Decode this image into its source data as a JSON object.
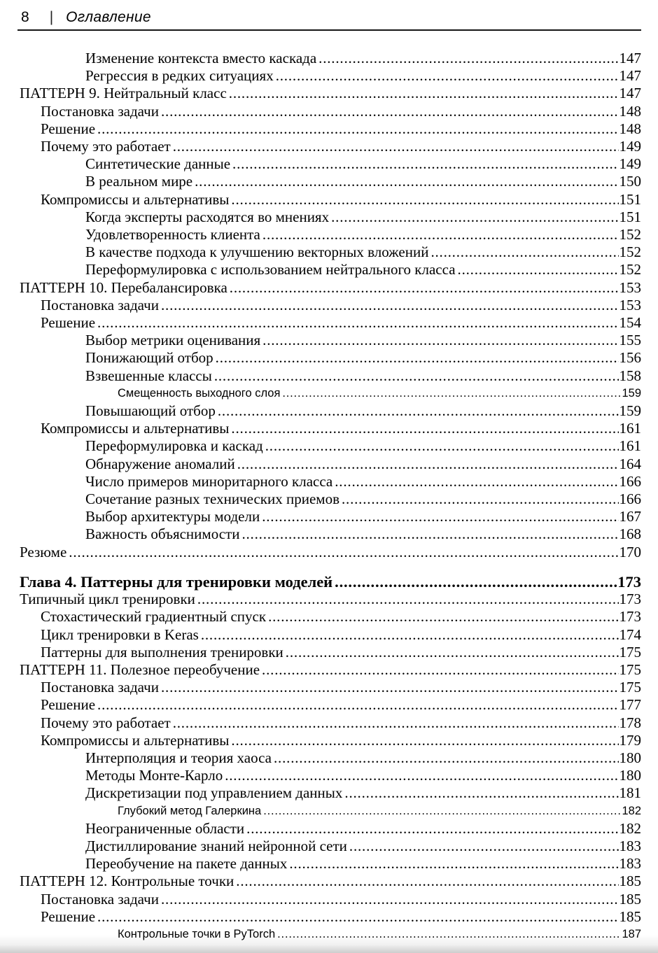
{
  "colors": {
    "background": "#ffffff",
    "text": "#000000",
    "rule": "#151515"
  },
  "header": {
    "page_number": "8",
    "separator": "|",
    "title": "Оглавление"
  },
  "toc": {
    "entries": [
      {
        "label": "Изменение контекста вместо каскада",
        "page": "147",
        "level": 2,
        "variant": "normal"
      },
      {
        "label": "Регрессия в редких ситуациях",
        "page": "147",
        "level": 2,
        "variant": "normal"
      },
      {
        "label": "ПАТТЕРН 9. Нейтральный класс",
        "page": "147",
        "level": 0,
        "variant": "normal"
      },
      {
        "label": "Постановка задачи",
        "page": "148",
        "level": 1,
        "variant": "normal"
      },
      {
        "label": "Решение",
        "page": "148",
        "level": 1,
        "variant": "normal"
      },
      {
        "label": "Почему это работает",
        "page": "149",
        "level": 1,
        "variant": "normal"
      },
      {
        "label": "Синтетические данные",
        "page": "149",
        "level": 2,
        "variant": "normal"
      },
      {
        "label": "В реальном мире",
        "page": "150",
        "level": 2,
        "variant": "normal"
      },
      {
        "label": "Компромиссы и альтернативы",
        "page": "151",
        "level": 1,
        "variant": "normal"
      },
      {
        "label": "Когда эксперты расходятся во мнениях",
        "page": "151",
        "level": 2,
        "variant": "normal"
      },
      {
        "label": "Удовлетворенность клиента",
        "page": "152",
        "level": 2,
        "variant": "normal"
      },
      {
        "label": "В качестве подхода к улучшению векторных вложений",
        "page": "152",
        "level": 2,
        "variant": "normal"
      },
      {
        "label": "Переформулировка с использованием нейтрального класса",
        "page": "152",
        "level": 2,
        "variant": "normal"
      },
      {
        "label": "ПАТТЕРН 10. Перебалансировка",
        "page": "153",
        "level": 0,
        "variant": "normal"
      },
      {
        "label": "Постановка задачи",
        "page": "153",
        "level": 1,
        "variant": "normal"
      },
      {
        "label": "Решение",
        "page": "154",
        "level": 1,
        "variant": "normal"
      },
      {
        "label": "Выбор метрики оценивания",
        "page": "155",
        "level": 2,
        "variant": "normal"
      },
      {
        "label": "Понижающий отбор",
        "page": "156",
        "level": 2,
        "variant": "normal"
      },
      {
        "label": "Взвешенные классы",
        "page": "158",
        "level": 2,
        "variant": "normal"
      },
      {
        "label": "Смещенность выходного слоя",
        "page": "159",
        "level": 3,
        "variant": "small"
      },
      {
        "label": "Повышающий отбор",
        "page": "159",
        "level": 2,
        "variant": "normal"
      },
      {
        "label": "Компромиссы и альтернативы",
        "page": "161",
        "level": 1,
        "variant": "normal"
      },
      {
        "label": "Переформулировка и каскад",
        "page": "161",
        "level": 2,
        "variant": "normal"
      },
      {
        "label": "Обнаружение аномалий",
        "page": "164",
        "level": 2,
        "variant": "normal"
      },
      {
        "label": "Число примеров миноритарного класса",
        "page": "166",
        "level": 2,
        "variant": "normal"
      },
      {
        "label": "Сочетание разных технических приемов",
        "page": "166",
        "level": 2,
        "variant": "normal"
      },
      {
        "label": "Выбор архитектуры модели",
        "page": "167",
        "level": 2,
        "variant": "normal"
      },
      {
        "label": "Важность объяснимости",
        "page": "168",
        "level": 2,
        "variant": "normal"
      },
      {
        "label": "Резюме",
        "page": "170",
        "level": 0,
        "variant": "normal"
      },
      {
        "label": "Глава 4. Паттерны для тренировки моделей",
        "page": "173",
        "level": 0,
        "variant": "chapter"
      },
      {
        "label": "Типичный цикл тренировки",
        "page": "173",
        "level": 0,
        "variant": "normal"
      },
      {
        "label": "Стохастический градиентный спуск",
        "page": "173",
        "level": 1,
        "variant": "normal"
      },
      {
        "label": "Цикл тренировки в Keras",
        "page": "174",
        "level": 1,
        "variant": "normal"
      },
      {
        "label": "Паттерны для выполнения тренировки",
        "page": "175",
        "level": 1,
        "variant": "normal"
      },
      {
        "label": "ПАТТЕРН 11. Полезное переобучение",
        "page": "175",
        "level": 0,
        "variant": "normal"
      },
      {
        "label": "Постановка задачи",
        "page": "175",
        "level": 1,
        "variant": "normal"
      },
      {
        "label": "Решение",
        "page": "177",
        "level": 1,
        "variant": "normal"
      },
      {
        "label": "Почему это работает",
        "page": "178",
        "level": 1,
        "variant": "normal"
      },
      {
        "label": "Компромиссы и альтернативы",
        "page": "179",
        "level": 1,
        "variant": "normal"
      },
      {
        "label": "Интерполяция и теория хаоса",
        "page": "180",
        "level": 2,
        "variant": "normal"
      },
      {
        "label": "Методы Монте-Карло",
        "page": "180",
        "level": 2,
        "variant": "normal"
      },
      {
        "label": "Дискретизации под управлением данных",
        "page": "181",
        "level": 2,
        "variant": "normal"
      },
      {
        "label": "Глубокий метод Галеркина",
        "page": "182",
        "level": 3,
        "variant": "small"
      },
      {
        "label": "Неограниченные области",
        "page": "182",
        "level": 2,
        "variant": "normal"
      },
      {
        "label": "Дистиллирование знаний нейронной сети",
        "page": "183",
        "level": 2,
        "variant": "normal"
      },
      {
        "label": "Переобучение на пакете данных",
        "page": "183",
        "level": 2,
        "variant": "normal"
      },
      {
        "label": "ПАТТЕРН 12. Контрольные точки",
        "page": "185",
        "level": 0,
        "variant": "normal"
      },
      {
        "label": "Постановка задачи",
        "page": "185",
        "level": 1,
        "variant": "normal"
      },
      {
        "label": "Решение",
        "page": "185",
        "level": 1,
        "variant": "normal"
      },
      {
        "label": "Контрольные точки в PyTorch",
        "page": "187",
        "level": 3,
        "variant": "small"
      }
    ]
  }
}
